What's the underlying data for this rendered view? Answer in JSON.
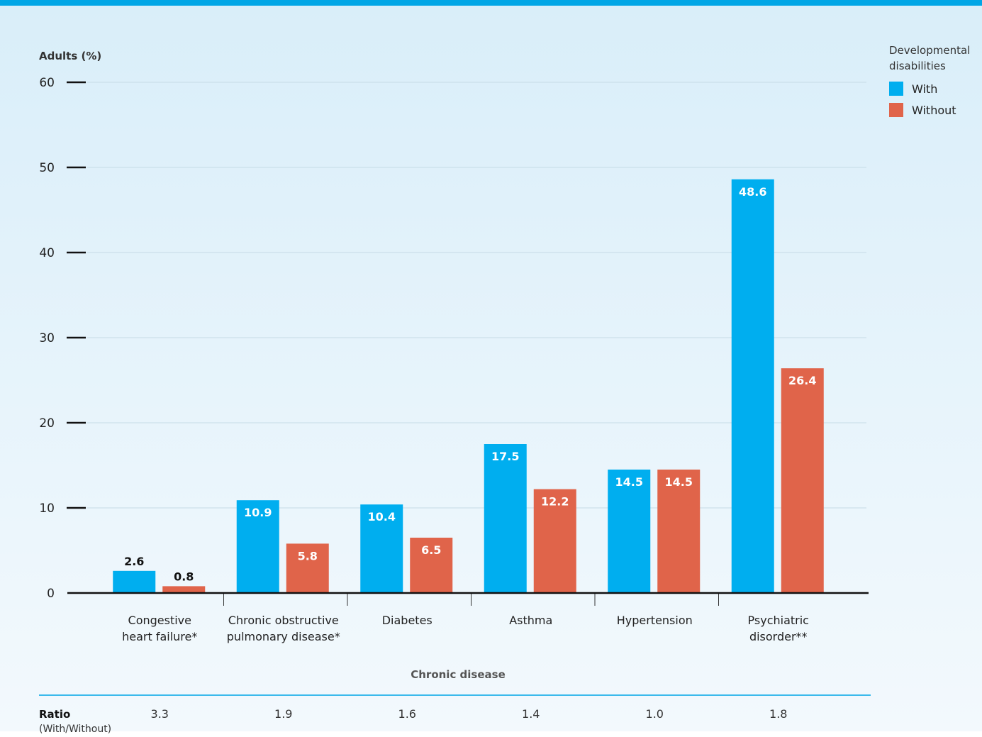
{
  "legend": {
    "title_line1": "Developmental",
    "title_line2": "disabilities",
    "items": [
      {
        "label": "With",
        "color": "#00aeef"
      },
      {
        "label": "Without",
        "color": "#e0644a"
      }
    ]
  },
  "ratio_row": {
    "title": "Ratio",
    "subtitle": "(With/Without)",
    "values": [
      "3.3",
      "1.9",
      "1.6",
      "1.4",
      "1.0",
      "1.8"
    ]
  },
  "chart_data": {
    "type": "bar",
    "title": "",
    "ylabel": "Adults (%)",
    "xlabel": "Chronic disease",
    "ylim": [
      0,
      60
    ],
    "yticks": [
      0,
      10,
      20,
      30,
      40,
      50,
      60
    ],
    "grid": true,
    "legend_position": "top-right",
    "categories": [
      [
        "Congestive",
        "heart failure*"
      ],
      [
        "Chronic obstructive",
        "pulmonary disease*"
      ],
      [
        "Diabetes"
      ],
      [
        "Asthma"
      ],
      [
        "Hypertension"
      ],
      [
        "Psychiatric",
        "disorder**"
      ]
    ],
    "series": [
      {
        "name": "With",
        "color": "#00aeef",
        "values": [
          2.6,
          10.9,
          10.4,
          17.5,
          14.5,
          48.6
        ],
        "labels": [
          "2.6",
          "10.9",
          "10.4",
          "17.5",
          "14.5",
          "48.6"
        ]
      },
      {
        "name": "Without",
        "color": "#e0644a",
        "values": [
          0.8,
          5.8,
          6.5,
          12.2,
          14.5,
          26.4
        ],
        "labels": [
          "0.8",
          "5.8",
          "6.5",
          "12.2",
          "14.5",
          "26.4"
        ]
      }
    ]
  }
}
